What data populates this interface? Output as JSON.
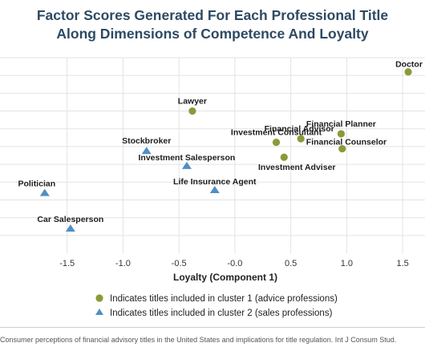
{
  "chart_data": {
    "type": "scatter",
    "title_lines": [
      "Factor Scores Generated For Each Professional Title",
      "Along Dimensions of Competence And Loyalty"
    ],
    "xlabel": "Loyalty (Component 1)",
    "ylabel": "",
    "x_ticks": [
      "-1.5",
      "-1.0",
      "-0.5",
      "-0.0",
      "0.5",
      "1.0",
      "1.5"
    ],
    "xlim": [
      -2.1,
      1.7
    ],
    "ylim": [
      -1.0,
      1.75
    ],
    "grid": true,
    "colors": {
      "cluster1": "#8a9a3a",
      "cluster2": "#4f8fc4",
      "grid": "#e3e3e3"
    },
    "series": [
      {
        "name": "Indicates titles included in cluster 1 (advice professions)",
        "marker": "circle",
        "points": [
          {
            "label": "Doctor",
            "x": 1.55,
            "y": 1.55
          },
          {
            "label": "Lawyer",
            "x": -0.38,
            "y": 1.0
          },
          {
            "label": "Financial Planner",
            "x": 0.95,
            "y": 0.68
          },
          {
            "label": "Financial Advisor",
            "x": 0.59,
            "y": 0.61
          },
          {
            "label": "Financial Counselor",
            "x": 0.96,
            "y": 0.47
          },
          {
            "label": "Investment Consultant",
            "x": 0.37,
            "y": 0.56
          },
          {
            "label": "Investment Adviser",
            "x": 0.44,
            "y": 0.35
          }
        ]
      },
      {
        "name": "Indicates titles included in cluster 2 (sales professions)",
        "marker": "triangle",
        "points": [
          {
            "label": "Stockbroker",
            "x": -0.79,
            "y": 0.44
          },
          {
            "label": "Investment Salesperson",
            "x": -0.43,
            "y": 0.23
          },
          {
            "label": "Life Insurance Agent",
            "x": -0.18,
            "y": -0.11
          },
          {
            "label": "Politician",
            "x": -1.7,
            "y": -0.15
          },
          {
            "label": "Car Salesperson",
            "x": -1.47,
            "y": -0.65
          }
        ]
      }
    ]
  },
  "citation": "Consumer perceptions of financial advisory titles in the United States and implications for title regulation. Int J Consum Stud."
}
